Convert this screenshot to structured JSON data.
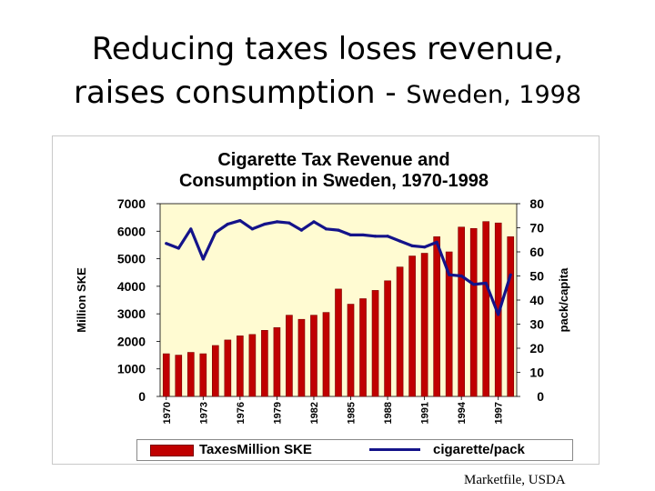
{
  "slide": {
    "title_line1": "Reducing taxes loses revenue,",
    "title_line2_main": "raises consumption - ",
    "title_line2_small": "Sweden, 1998",
    "source": "Marketfile, USDA"
  },
  "colors": {
    "bars": "#c00000",
    "bar_edge": "#7a0000",
    "line": "#14138a",
    "plot_bg": "#fffbd2"
  },
  "chart_data": {
    "type": "bar+line",
    "title": "Cigarette Tax Revenue and Consumption in Sweden, 1970-1998",
    "title_line1": "Cigarette Tax Revenue and",
    "title_line2": "Consumption in Sweden, 1970-1998",
    "ylabel_left": "Million SKE",
    "ylabel_right": "pack/capita",
    "ylim_left": [
      0,
      7000
    ],
    "ylim_right": [
      0,
      80
    ],
    "yticks_left": [
      "0",
      "1000",
      "2000",
      "3000",
      "4000",
      "5000",
      "6000",
      "7000"
    ],
    "yticks_right": [
      "0",
      "10",
      "20",
      "30",
      "40",
      "50",
      "60",
      "70",
      "80"
    ],
    "categories": [
      "1970",
      "1971",
      "1972",
      "1973",
      "1974",
      "1975",
      "1976",
      "1977",
      "1978",
      "1979",
      "1980",
      "1981",
      "1982",
      "1983",
      "1984",
      "1985",
      "1986",
      "1987",
      "1988",
      "1989",
      "1990",
      "1991",
      "1992",
      "1993",
      "1994",
      "1995",
      "1996",
      "1997",
      "1998"
    ],
    "xtick_labels": [
      "1970",
      "1973",
      "1976",
      "1979",
      "1982",
      "1985",
      "1988",
      "1991",
      "1994",
      "1997"
    ],
    "grid": false,
    "legend_position": "bottom",
    "series": [
      {
        "name": "TaxesMillion SKE",
        "type": "bar",
        "axis": "left",
        "values": [
          1550,
          1500,
          1600,
          1550,
          1850,
          2050,
          2200,
          2250,
          2400,
          2500,
          2950,
          2800,
          2950,
          3050,
          3900,
          3350,
          3550,
          3850,
          4200,
          4700,
          5100,
          5200,
          5800,
          5250,
          6150,
          6100,
          6350,
          6300,
          5800
        ]
      },
      {
        "name": "cigarette/pack",
        "type": "line",
        "axis": "right",
        "values": [
          63.5,
          61.5,
          69.5,
          57,
          68,
          71.5,
          73,
          69.5,
          71.5,
          72.5,
          72,
          69,
          72.5,
          69.5,
          69,
          67,
          67,
          66.5,
          66.5,
          64.5,
          62.5,
          62,
          64,
          50.5,
          50,
          46.5,
          47,
          34,
          50.5
        ]
      }
    ]
  }
}
